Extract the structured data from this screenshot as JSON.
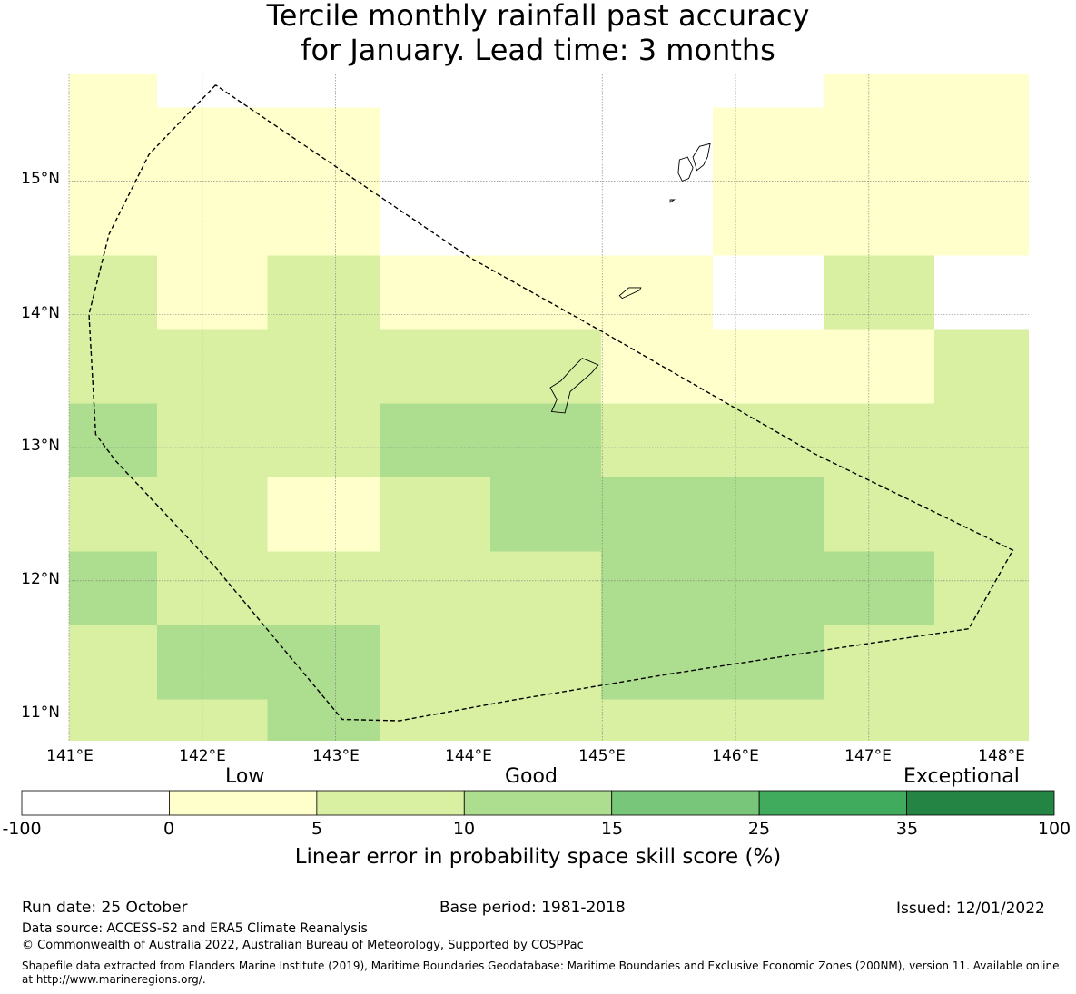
{
  "title": {
    "line1": "Tercile monthly rainfall past accuracy",
    "line2": "for January. Lead time: 3 months"
  },
  "map": {
    "lon_range": [
      141.0,
      148.2
    ],
    "lat_range": [
      10.8,
      15.8
    ],
    "lon_ticks": [
      "141°E",
      "142°E",
      "143°E",
      "144°E",
      "145°E",
      "146°E",
      "147°E",
      "148°E"
    ],
    "lat_ticks": [
      "15°N",
      "14°N",
      "13°N",
      "12°N",
      "11°N"
    ],
    "grid_lon_edges": [
      141.0,
      141.66,
      142.49,
      143.33,
      144.16,
      144.99,
      145.83,
      146.66,
      147.49,
      148.2
    ],
    "grid_lat_edges": [
      15.8,
      15.55,
      14.44,
      13.89,
      13.33,
      12.78,
      12.22,
      11.67,
      11.11,
      10.8
    ],
    "skill_bins_by_row": [
      [
        1,
        -1,
        -1,
        -1,
        -1,
        -1,
        -1,
        1,
        1
      ],
      [
        1,
        1,
        1,
        -1,
        -1,
        -1,
        1,
        1,
        1
      ],
      [
        2,
        1,
        2,
        1,
        1,
        1,
        -1,
        2,
        -1
      ],
      [
        2,
        2,
        2,
        2,
        2,
        1,
        1,
        1,
        2
      ],
      [
        3,
        2,
        2,
        3,
        3,
        2,
        2,
        2,
        2
      ],
      [
        2,
        2,
        1,
        2,
        3,
        3,
        3,
        2,
        2
      ],
      [
        3,
        2,
        2,
        2,
        2,
        3,
        3,
        3,
        2
      ],
      [
        2,
        3,
        3,
        2,
        2,
        3,
        3,
        2,
        2
      ],
      [
        2,
        2,
        3,
        2,
        2,
        2,
        2,
        2,
        2
      ]
    ],
    "boundary_lonlat": [
      [
        142.1,
        15.72
      ],
      [
        141.6,
        15.2
      ],
      [
        141.3,
        14.6
      ],
      [
        141.15,
        14.0
      ],
      [
        141.2,
        13.1
      ],
      [
        141.35,
        12.9
      ],
      [
        142.1,
        12.1
      ],
      [
        143.05,
        10.96
      ],
      [
        143.48,
        10.95
      ],
      [
        144.3,
        11.1
      ],
      [
        145.5,
        11.3
      ],
      [
        146.8,
        11.5
      ],
      [
        147.75,
        11.64
      ],
      [
        148.08,
        12.23
      ],
      [
        146.6,
        12.95
      ],
      [
        145.0,
        13.87
      ],
      [
        144.0,
        14.43
      ],
      [
        142.1,
        15.72
      ]
    ],
    "islands_lonlat": [
      [
        [
          144.62,
          13.27
        ],
        [
          144.72,
          13.26
        ],
        [
          144.76,
          13.42
        ],
        [
          144.92,
          13.56
        ],
        [
          144.97,
          13.62
        ],
        [
          144.9,
          13.65
        ],
        [
          144.85,
          13.67
        ],
        [
          144.78,
          13.6
        ],
        [
          144.69,
          13.5
        ],
        [
          144.61,
          13.45
        ],
        [
          144.66,
          13.36
        ],
        [
          144.62,
          13.27
        ]
      ],
      [
        [
          145.15,
          14.12
        ],
        [
          145.28,
          14.18
        ],
        [
          145.29,
          14.2
        ],
        [
          145.2,
          14.2
        ],
        [
          145.13,
          14.14
        ],
        [
          145.15,
          14.12
        ]
      ],
      [
        [
          145.6,
          15.0
        ],
        [
          145.65,
          15.02
        ],
        [
          145.68,
          15.1
        ],
        [
          145.64,
          15.18
        ],
        [
          145.58,
          15.16
        ],
        [
          145.57,
          15.06
        ],
        [
          145.6,
          15.0
        ]
      ],
      [
        [
          145.71,
          15.08
        ],
        [
          145.76,
          15.12
        ],
        [
          145.79,
          15.18
        ],
        [
          145.81,
          15.28
        ],
        [
          145.73,
          15.26
        ],
        [
          145.68,
          15.18
        ],
        [
          145.71,
          15.08
        ]
      ],
      [
        [
          145.51,
          14.86
        ],
        [
          145.54,
          14.86
        ],
        [
          145.51,
          14.84
        ],
        [
          145.51,
          14.86
        ]
      ]
    ]
  },
  "colorbar": {
    "categories": [
      "Low",
      "Good",
      "Exceptional"
    ],
    "tick_labels": [
      "-100",
      "0",
      "5",
      "10",
      "15",
      "25",
      "35",
      "100"
    ],
    "colors": [
      "#ffffff",
      "#ffffcc",
      "#d9f0a3",
      "#addd8e",
      "#78c679",
      "#41ab5d",
      "#238443"
    ],
    "label": "Linear error in probability space skill score (%)"
  },
  "footer": {
    "run_date": "Run date: 25 October",
    "base_period": "Base period: 1981-2018",
    "issued": "Issued: 12/01/2022",
    "data_source": "Data source: ACCESS-S2 and ERA5 Climate Reanalysis",
    "copyright": "© Commonwealth of Australia 2022, Australian Bureau of Meteorology, Supported by COSPPac",
    "shapefile_line1": "Shapefile data extracted from Flanders Marine Institute (2019), Maritime Boundaries Geodatabase: Maritime Boundaries and Exclusive Economic Zones (200NM), version 11. Available online",
    "shapefile_line2": "at http://www.marineregions.org/."
  }
}
